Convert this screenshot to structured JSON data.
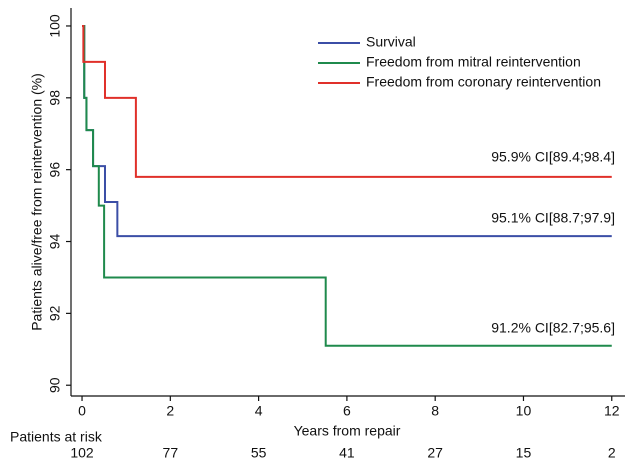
{
  "chart_data": {
    "type": "step",
    "xlabel": "Years from repair",
    "ylabel": "Patients alive/free from reintervention (%)",
    "xlim": [
      -0.25,
      12.3
    ],
    "ylim": [
      89.7,
      100.5
    ],
    "xticks": [
      0,
      2,
      4,
      6,
      8,
      10,
      12
    ],
    "yticks": [
      90,
      92,
      94,
      96,
      98,
      100
    ],
    "legend": "top-right",
    "series": [
      {
        "name": "Survival",
        "color": "#3b4ea6",
        "x": [
          0,
          0.05,
          0.1,
          0.25,
          0.52,
          0.8,
          12
        ],
        "values": [
          100,
          98,
          97.1,
          96.1,
          95.1,
          94.15,
          94.15
        ]
      },
      {
        "name": "Freedom from mitral reintervention",
        "color": "#1f8a4c",
        "x": [
          0,
          0.05,
          0.1,
          0.25,
          0.38,
          0.5,
          5.52,
          12
        ],
        "values": [
          100,
          98,
          97.1,
          96.1,
          95,
          93,
          91.1,
          91.1
        ]
      },
      {
        "name": "Freedom from coronary reintervention",
        "color": "#e0302a",
        "x": [
          0,
          0.03,
          0.52,
          1.22,
          12
        ],
        "values": [
          100,
          99,
          98,
          95.8,
          95.8
        ]
      }
    ],
    "annotations": [
      "95.9% CI[89.4;98.4]",
      "95.1% CI[88.7;97.9]",
      "91.2% CI[82.7;95.6]"
    ],
    "risk_table": {
      "label": "Patients at risk",
      "x": [
        0,
        2,
        4,
        6,
        8,
        10,
        12
      ],
      "counts": [
        102,
        77,
        55,
        41,
        27,
        15,
        2
      ]
    }
  }
}
